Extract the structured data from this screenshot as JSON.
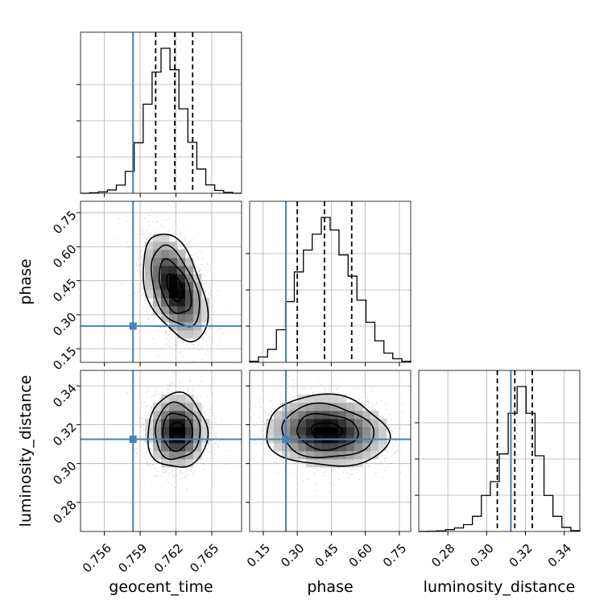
{
  "chart_data": {
    "type": "corner",
    "parameters": [
      "geocent_time",
      "phase",
      "luminosity_distance"
    ],
    "axis_labels": {
      "geocent_time": "geocent_time",
      "phase": "phase",
      "luminosity_distance": "luminosity_distance"
    },
    "truth_color": "#4682b4",
    "truths": {
      "geocent_time": 0.7584,
      "phase": 0.25,
      "luminosity_distance": 0.3125
    },
    "ranges": {
      "geocent_time": [
        0.754,
        0.7675
      ],
      "phase": [
        0.09,
        0.8
      ],
      "luminosity_distance": [
        0.265,
        0.348
      ]
    },
    "ticks": {
      "geocent_time": {
        "values": [
          0.756,
          0.759,
          0.762,
          0.765
        ],
        "labels": [
          "0.756",
          "0.759",
          "0.762",
          "0.765"
        ]
      },
      "phase": {
        "values": [
          0.15,
          0.3,
          0.45,
          0.6,
          0.75
        ],
        "labels": [
          "0.15",
          "0.30",
          "0.45",
          "0.60",
          "0.75"
        ]
      },
      "luminosity_distance": {
        "values": [
          0.28,
          0.3,
          0.32,
          0.34
        ],
        "labels": [
          "0.28",
          "0.30",
          "0.32",
          "0.34"
        ]
      }
    },
    "quantiles": {
      "geocent_time": [
        0.7603,
        0.7619,
        0.7634
      ],
      "phase": [
        0.3,
        0.42,
        0.54
      ],
      "luminosity_distance": [
        0.3055,
        0.3145,
        0.3235
      ]
    },
    "histograms": {
      "geocent_time": {
        "edges": [
          0.754,
          0.75475,
          0.7555,
          0.75625,
          0.757,
          0.75775,
          0.7585,
          0.75925,
          0.76,
          0.76075,
          0.7615,
          0.76225,
          0.763,
          0.76375,
          0.7645,
          0.76525,
          0.766,
          0.76675,
          0.7675
        ],
        "counts": [
          0,
          2,
          6,
          14,
          35,
          94,
          217,
          383,
          521,
          623,
          531,
          363,
          219,
          104,
          36,
          12,
          4,
          0
        ]
      },
      "phase": {
        "edges": [
          0.09,
          0.129,
          0.169,
          0.208,
          0.248,
          0.287,
          0.327,
          0.366,
          0.406,
          0.445,
          0.484,
          0.524,
          0.563,
          0.603,
          0.642,
          0.682,
          0.721,
          0.761,
          0.8
        ],
        "counts": [
          7,
          36,
          86,
          215,
          400,
          596,
          740,
          845,
          955,
          872,
          708,
          568,
          410,
          264,
          142,
          61,
          24,
          7
        ]
      },
      "luminosity_distance": {
        "edges": [
          0.265,
          0.26961,
          0.27422,
          0.27883,
          0.28344,
          0.28806,
          0.29267,
          0.29728,
          0.30189,
          0.3065,
          0.31111,
          0.31572,
          0.32033,
          0.32494,
          0.32956,
          0.33417,
          0.33878,
          0.34339,
          0.348
        ],
        "counts": [
          0,
          1,
          3,
          10,
          19,
          37,
          82,
          195,
          270,
          420,
          640,
          785,
          640,
          410,
          195,
          82,
          22,
          5
        ]
      }
    },
    "pairs": [
      {
        "x": "geocent_time",
        "y": "phase",
        "center": [
          0.7619,
          0.42
        ],
        "sigma": [
          0.00135,
          0.118
        ],
        "corr": -0.45
      },
      {
        "x": "geocent_time",
        "y": "luminosity_distance",
        "center": [
          0.7621,
          0.3165
        ],
        "sigma": [
          0.00125,
          0.0096
        ],
        "corr": 0.0
      },
      {
        "x": "phase",
        "y": "luminosity_distance",
        "center": [
          0.43,
          0.3165
        ],
        "sigma": [
          0.135,
          0.0092
        ],
        "corr": -0.08
      }
    ]
  }
}
